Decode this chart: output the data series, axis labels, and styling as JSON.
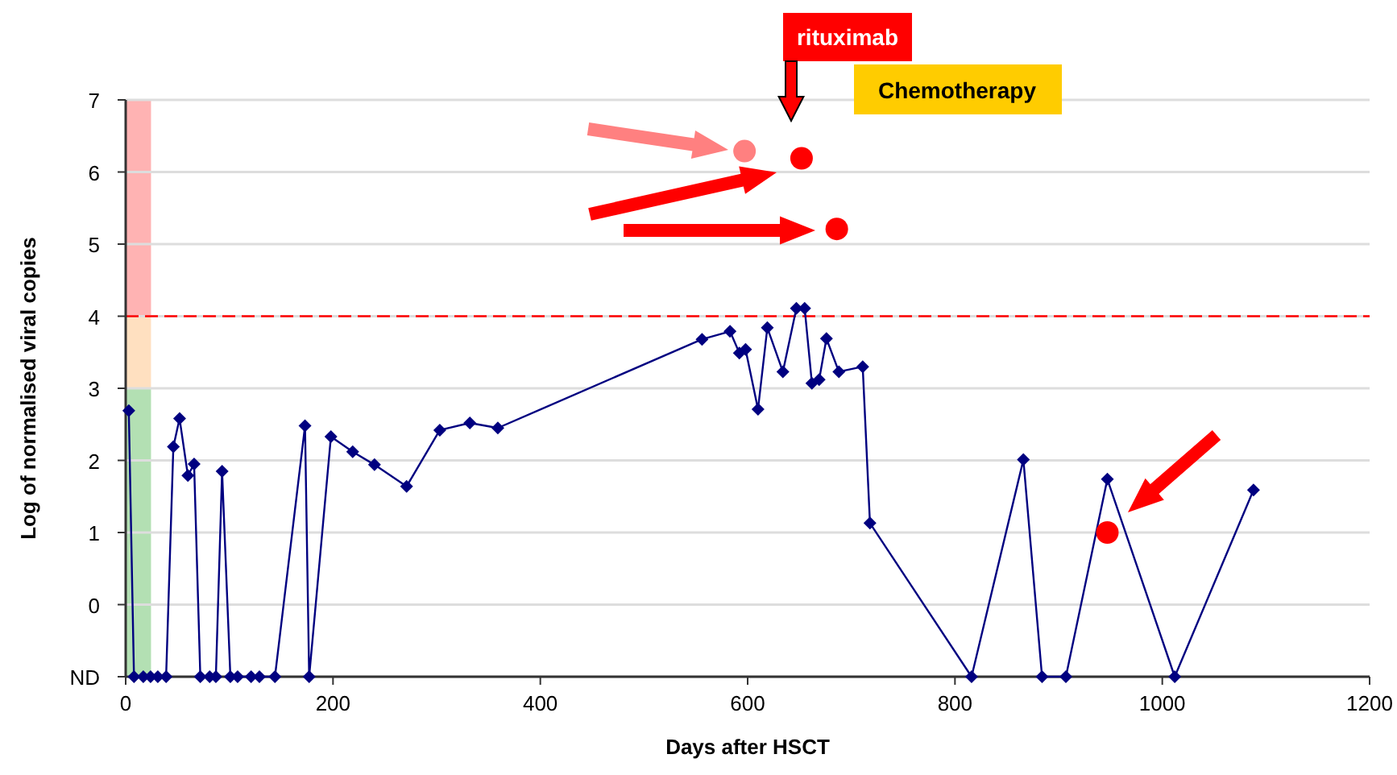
{
  "chart_data": {
    "type": "line",
    "xlabel": "Days after HSCT",
    "ylabel": "Log of normalised viral copies",
    "xlim": [
      0,
      1200
    ],
    "xticks": [
      0,
      200,
      400,
      600,
      800,
      1000,
      1200
    ],
    "ylim": [
      -1,
      7
    ],
    "yticks": [
      {
        "value": -1,
        "label": "ND"
      },
      0,
      1,
      2,
      3,
      4,
      5,
      6,
      7
    ],
    "grid": "y",
    "marker": "diamond",
    "line_style": "solid",
    "series": [
      {
        "type": "bar",
        "color": "#b3e0b3",
        "x": [
          12
        ],
        "base": [
          -1
        ],
        "values": [
          4
        ]
      },
      {
        "type": "bar",
        "color": "#ffe0c0",
        "x": [
          12
        ],
        "base": [
          3
        ],
        "values": [
          1
        ]
      },
      {
        "type": "bar",
        "color": "#ffb3b3",
        "x": [
          12
        ],
        "base": [
          4
        ],
        "values": [
          3
        ]
      },
      {
        "color": "#000080",
        "x": [
          3,
          8,
          17,
          24,
          31,
          39,
          46,
          52,
          60,
          66,
          72,
          81,
          87,
          93,
          101,
          108,
          121,
          129,
          144,
          173,
          177,
          198,
          219,
          240,
          271,
          303,
          332,
          359,
          556,
          583,
          592,
          598,
          610,
          619,
          634,
          647,
          655,
          662,
          669,
          676,
          688,
          711,
          718,
          816,
          866,
          884,
          907,
          947,
          1012,
          1088
        ],
        "values": [
          2.69,
          -1,
          -1,
          -1,
          -1,
          -1,
          2.19,
          2.58,
          1.79,
          1.95,
          -1,
          -1,
          -1,
          1.85,
          -1,
          -1,
          -1,
          -1,
          -1,
          2.48,
          -1,
          2.33,
          2.12,
          1.94,
          1.64,
          2.42,
          2.52,
          2.45,
          3.68,
          3.79,
          3.49,
          3.54,
          2.71,
          3.84,
          3.23,
          4.11,
          4.11,
          3.07,
          3.12,
          3.69,
          3.23,
          3.3,
          1.13,
          -1,
          2.01,
          -1,
          -1,
          1.74,
          -1,
          1.59
        ]
      },
      {
        "type": "scatter",
        "marker": "circle",
        "color": "#ff8080",
        "x": [
          597
        ],
        "values": [
          6.29
        ]
      },
      {
        "type": "scatter",
        "marker": "circle",
        "color": "#ff0000",
        "x": [
          652,
          686,
          947
        ],
        "values": [
          6.19,
          5.21,
          1.0
        ]
      }
    ],
    "ref_lines": [
      {
        "axis": "y",
        "value": 4,
        "color": "#ff0000",
        "line_style": "dashed"
      }
    ],
    "annotations": [
      "rituximab",
      "Chemotherapy"
    ]
  }
}
